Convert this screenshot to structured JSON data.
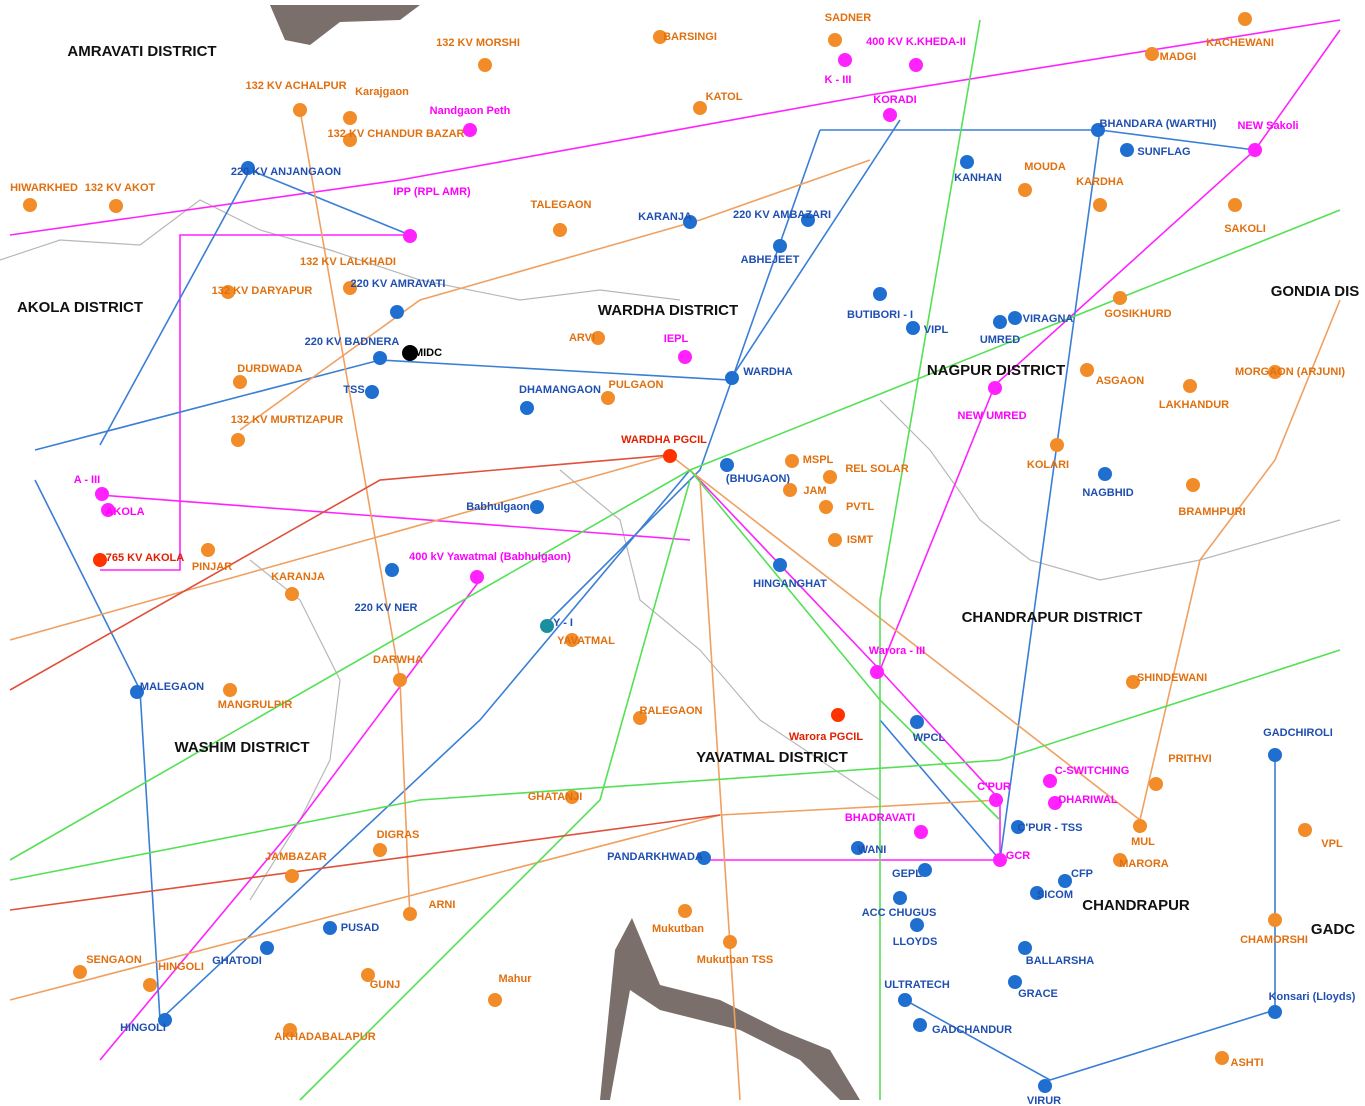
{
  "districts": [
    "AMRAVATI DISTRICT",
    "AKOLA DISTRICT",
    "WARDHA DISTRICT",
    "NAGPUR DISTRICT",
    "CHANDRAPUR DISTRICT",
    "YAVATMAL DISTRICT",
    "WASHIM DISTRICT",
    "GONDIA DIS",
    "CHANDRAPUR",
    "GADC"
  ],
  "substations": [
    "132 KV MORSHI",
    "BARSINGI",
    "SADNER",
    "K - III",
    "400 KV K.KHEDA-II",
    "MADGI",
    "KACHEWANI",
    "132 KV ACHALPUR",
    "Karajgaon",
    "Nandgaon Peth",
    "KATOL",
    "KORADI",
    "KANHAN",
    "BHANDARA (WARTHI)",
    "SUNFLAG",
    "NEW Sakoli",
    "HIWARKHED",
    "132 KV AKOT",
    "220 KV ANJANGAON",
    "132 KV CHANDUR BAZAR",
    "IPP (RPL AMR)",
    "TALEGAON",
    "KARANJA",
    "220 KV AMBAZARI",
    "MOUDA",
    "KARDHA",
    "SAKOLI",
    "132 KV LALKHADI",
    "132 KV DARYAPUR",
    "220 KV AMRAVATI",
    "220 KV BADNERA",
    "MIDC",
    "TSS",
    "DHAMANGAON",
    "ARVI",
    "IEPL",
    "ABHEJEET",
    "BUTIBORI - I",
    "VIPL",
    "UMRED",
    "VIRAGNA",
    "GOSIKHURD",
    "DURDWADA",
    "PULGAON",
    "WARDHA",
    "NEW UMRED",
    "ASGAON",
    "LAKHANDUR",
    "MORGAON (ARJUNI)",
    "132 KV MURTIZAPUR",
    "A - III",
    "AKOLA",
    "765 KV AKOLA",
    "WARDHA PGCIL",
    "(BHUGAON)",
    "MSPL",
    "REL SOLAR",
    "Babhulgaon",
    "JAM",
    "PVTL",
    "ISMT",
    "KOLARI",
    "NAGBHID",
    "BRAMHPURI",
    "400 kV Yawatmal (Babhulgaon)",
    "220 KV NER",
    "HINGANGHAT",
    "PINJAR",
    "KARANJA",
    "Y - I",
    "YAVATMAL",
    "Warora - III",
    "MALEGAON",
    "MANGRULPIR",
    "RALEGAON",
    "WPCL",
    "Warora PGCIL",
    "SHINDEWANI",
    "GADCHIROLI",
    "C'PUR",
    "C-SWITCHING",
    "DHARIWAL",
    "BHADRAVATI",
    "GHATANJI",
    "WANI",
    "PANDARKHWADA",
    "GCR",
    "C'PUR - TSS",
    "CFP",
    "SICOM",
    "MUL",
    "MARORA",
    "PRITHVI",
    "JAMBAZAR",
    "DIGRAS",
    "PUSAD",
    "ARNI",
    "Mukutban",
    "Mukutban TSS",
    "ACC CHUGUS",
    "LLOYDS",
    "BALLARSHA",
    "GRACE",
    "ULTRATECH",
    "GADCHANDUR",
    "CHAMORSHI",
    "Konsari (Lloyds)",
    "SENGAON",
    "HINGOLI",
    "GHATODI",
    "HINGOLI",
    "AKHADABALAPUR",
    "Mahur",
    "GUNJ",
    "VIRUR",
    "ASHTI",
    "DARWHA",
    "GEPL",
    "VPL"
  ]
}
